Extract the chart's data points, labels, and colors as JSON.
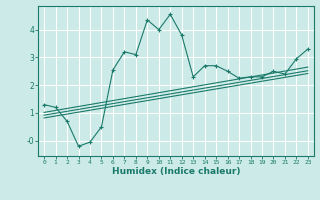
{
  "bg_color": "#cceae7",
  "grid_color": "#ffffff",
  "line_color": "#1a7a6a",
  "xlabel": "Humidex (Indice chaleur)",
  "xlim": [
    -0.5,
    23.5
  ],
  "ylim": [
    -0.55,
    4.85
  ],
  "yticks": [
    0,
    1,
    2,
    3,
    4
  ],
  "ytick_labels": [
    "-0",
    "1",
    "2",
    "3",
    "4"
  ],
  "xticks": [
    0,
    1,
    2,
    3,
    4,
    5,
    6,
    7,
    8,
    9,
    10,
    11,
    12,
    13,
    14,
    15,
    16,
    17,
    18,
    19,
    20,
    21,
    22,
    23
  ],
  "series": [
    {
      "x": [
        0,
        1,
        2,
        3,
        4,
        5,
        6,
        7,
        8,
        9,
        10,
        11,
        12,
        13,
        14,
        15,
        16,
        17,
        18,
        19,
        20,
        21,
        22,
        23
      ],
      "y": [
        1.3,
        1.2,
        0.7,
        -0.2,
        -0.05,
        0.5,
        2.55,
        3.2,
        3.1,
        4.35,
        4.0,
        4.55,
        3.8,
        2.3,
        2.7,
        2.7,
        2.5,
        2.25,
        2.3,
        2.3,
        2.5,
        2.4,
        2.95,
        3.3
      ],
      "marker": "+"
    },
    {
      "x": [
        0,
        23
      ],
      "y": [
        0.82,
        2.42
      ],
      "marker": null
    },
    {
      "x": [
        0,
        23
      ],
      "y": [
        0.92,
        2.52
      ],
      "marker": null
    },
    {
      "x": [
        0,
        23
      ],
      "y": [
        1.02,
        2.65
      ],
      "marker": null
    }
  ]
}
